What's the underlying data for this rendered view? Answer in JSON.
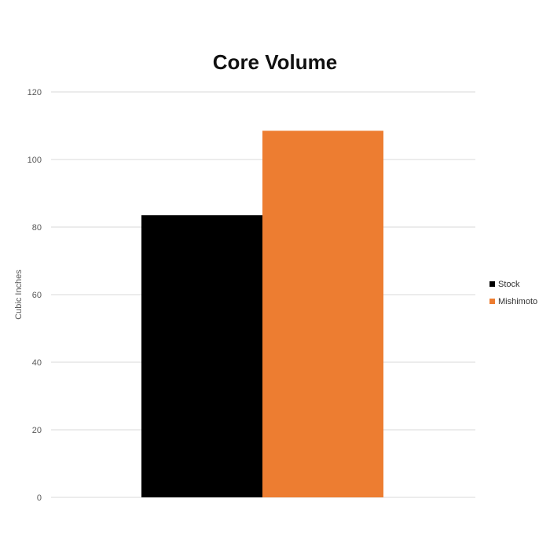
{
  "chart_data": {
    "type": "bar",
    "title": "Core Volume",
    "xlabel": "",
    "ylabel": "Cubic Inches",
    "ylim": [
      0,
      120
    ],
    "yticks": [
      0,
      20,
      40,
      60,
      80,
      100,
      120
    ],
    "grid": true,
    "legend_position": "right",
    "series": [
      {
        "name": "Stock",
        "values": [
          83.5
        ],
        "color": "#000000"
      },
      {
        "name": "Mishimoto",
        "values": [
          108.5
        ],
        "color": "#ed7d31"
      }
    ]
  }
}
